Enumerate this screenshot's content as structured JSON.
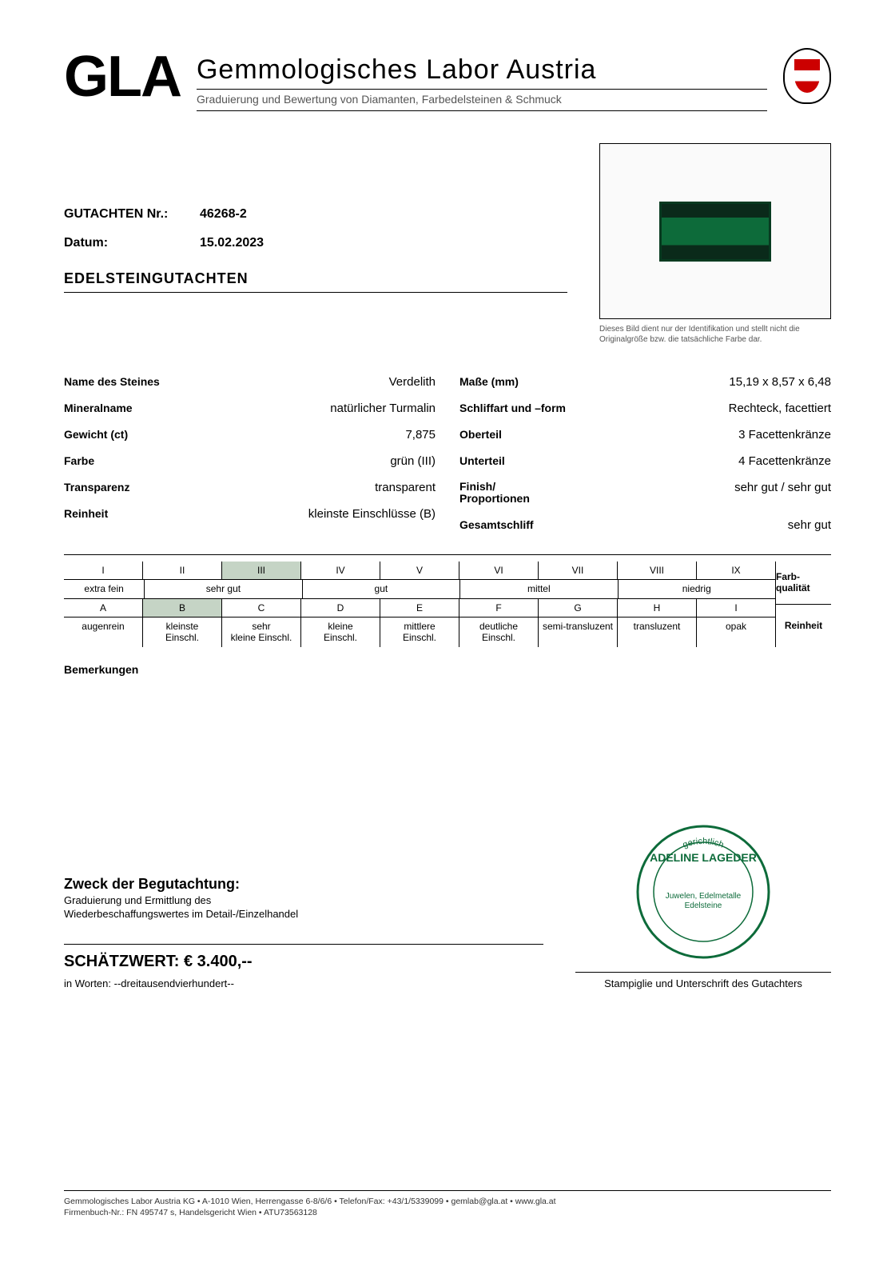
{
  "header": {
    "logo": "GLA",
    "title": "Gemmologisches Labor Austria",
    "subtitle": "Graduierung und Bewertung von Diamanten, Farbedelsteinen & Schmuck"
  },
  "cert": {
    "number_label": "GUTACHTEN Nr.:",
    "number": "46268-2",
    "date_label": "Datum:",
    "date": "15.02.2023",
    "photo_caption": "Dieses Bild dient nur der Identifikation und stellt nicht die Originalgröße bzw. die tatsächliche Farbe dar."
  },
  "section_title": "EDELSTEINGUTACHTEN",
  "props_left": [
    {
      "k": "Name des Steines",
      "v": "Verdelith"
    },
    {
      "k": "Mineralname",
      "v": "natürlicher Turmalin"
    },
    {
      "k": "Gewicht (ct)",
      "v": "7,875"
    },
    {
      "k": "Farbe",
      "v": "grün (III)"
    },
    {
      "k": "Transparenz",
      "v": "transparent"
    },
    {
      "k": "Reinheit",
      "v": "kleinste Einschlüsse (B)"
    }
  ],
  "props_right": [
    {
      "k": "Maße (mm)",
      "v": "15,19 x 8,57 x 6,48"
    },
    {
      "k": "Schliffart und –form",
      "v": "Rechteck, facettiert"
    },
    {
      "k": "Oberteil",
      "v": "3 Facettenkränze"
    },
    {
      "k": "Unterteil",
      "v": "4 Facettenkränze"
    },
    {
      "k": "Finish/\nProportionen",
      "v": "sehr gut / sehr gut"
    },
    {
      "k": "Gesamtschliff",
      "v": "sehr gut"
    }
  ],
  "grading": {
    "romans": [
      "I",
      "II",
      "III",
      "IV",
      "V",
      "VI",
      "VII",
      "VIII",
      "IX"
    ],
    "color_groups": [
      {
        "label": "extra fein",
        "span": 1
      },
      {
        "label": "sehr gut",
        "span": 2
      },
      {
        "label": "gut",
        "span": 2
      },
      {
        "label": "mittel",
        "span": 2
      },
      {
        "label": "niedrig",
        "span": 2
      }
    ],
    "letters": [
      "A",
      "B",
      "C",
      "D",
      "E",
      "F",
      "G",
      "H",
      "I"
    ],
    "clarity_labels": [
      "augenrein",
      "kleinste Einschl.",
      "sehr kleine Einschl.",
      "kleine Einschl.",
      "mittlere Einschl.",
      "deutliche Einschl.",
      "semi-transluzent",
      "transluzent",
      "opak"
    ],
    "side_top": "Farb-qualität",
    "side_bottom": "Reinheit",
    "hl_roman": "III",
    "hl_letter": "B"
  },
  "remarks_label": "Bemerkungen",
  "purpose": {
    "title": "Zweck der Begutachtung:",
    "line1": "Graduierung und Ermittlung des",
    "line2": "Wiederbeschaffungswertes im Detail-/Einzelhandel"
  },
  "valuation": {
    "label": "SCHÄTZWERT: € 3.400,--",
    "words": "in Worten: --dreitausendvierhundert--"
  },
  "stamp": {
    "name": "ADELINE LAGEDER",
    "sub": "Juwelen, Edelmetalle Edelsteine",
    "arc_top": "gerichtlich",
    "sig_line": "Stampiglie und Unterschrift des Gutachters"
  },
  "footer": {
    "line1": "Gemmologisches Labor Austria KG  •  A-1010 Wien, Herrengasse 6-8/6/6  •  Telefon/Fax: +43/1/5339099  •  gemlab@gla.at  •  www.gla.at",
    "line2": "Firmenbuch-Nr.: FN 495747 s, Handelsgericht Wien  •  ATU73563128"
  },
  "colors": {
    "gem_dark": "#0a2a1a",
    "gem_mid": "#0d6b3a",
    "stamp": "#0d6b3a",
    "hl_bg": "#c5d4c5"
  }
}
